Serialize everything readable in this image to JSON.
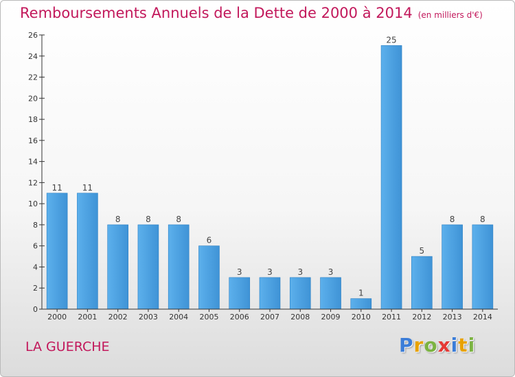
{
  "title": "Remboursements Annuels de la Dette de 2000 à 2014",
  "unit_note": "(en milliers d'€)",
  "place": "LA GUERCHE",
  "logo": {
    "letters": [
      "P",
      "r",
      "o",
      "x",
      "i",
      "t",
      "i"
    ],
    "colors": [
      "#3b7dd8",
      "#e8a200",
      "#7cb342",
      "#e53935",
      "#3b7dd8",
      "#e8a200",
      "#7cb342"
    ]
  },
  "colors": {
    "bar": "#4a9fe0",
    "bar_dark": "#2a7fc4",
    "title": "#c2185b",
    "axis": "#333333"
  },
  "chart_data": {
    "type": "bar",
    "title": "Remboursements Annuels de la Dette de 2000 à 2014",
    "categories": [
      "2000",
      "2001",
      "2002",
      "2003",
      "2004",
      "2005",
      "2006",
      "2007",
      "2008",
      "2009",
      "2010",
      "2011",
      "2012",
      "2013",
      "2014"
    ],
    "values": [
      11,
      11,
      8,
      8,
      8,
      6,
      3,
      3,
      3,
      3,
      1,
      25,
      5,
      8,
      8
    ],
    "data_labels": [
      "11",
      "11",
      "8",
      "8",
      "8",
      "6",
      "3",
      "3",
      "3",
      "3",
      "1",
      "25",
      "5",
      "8",
      "8"
    ],
    "xlabel": "",
    "ylabel": "",
    "ylim": [
      0,
      26
    ],
    "yticks": [
      0,
      2,
      4,
      6,
      8,
      10,
      12,
      14,
      16,
      18,
      20,
      22,
      24,
      26
    ],
    "ytick_labels": [
      "0",
      "2",
      "4",
      "6",
      "8",
      "10",
      "12",
      "14",
      "16",
      "18",
      "20",
      "22",
      "24",
      "26"
    ],
    "grid": false,
    "legend": "none"
  }
}
